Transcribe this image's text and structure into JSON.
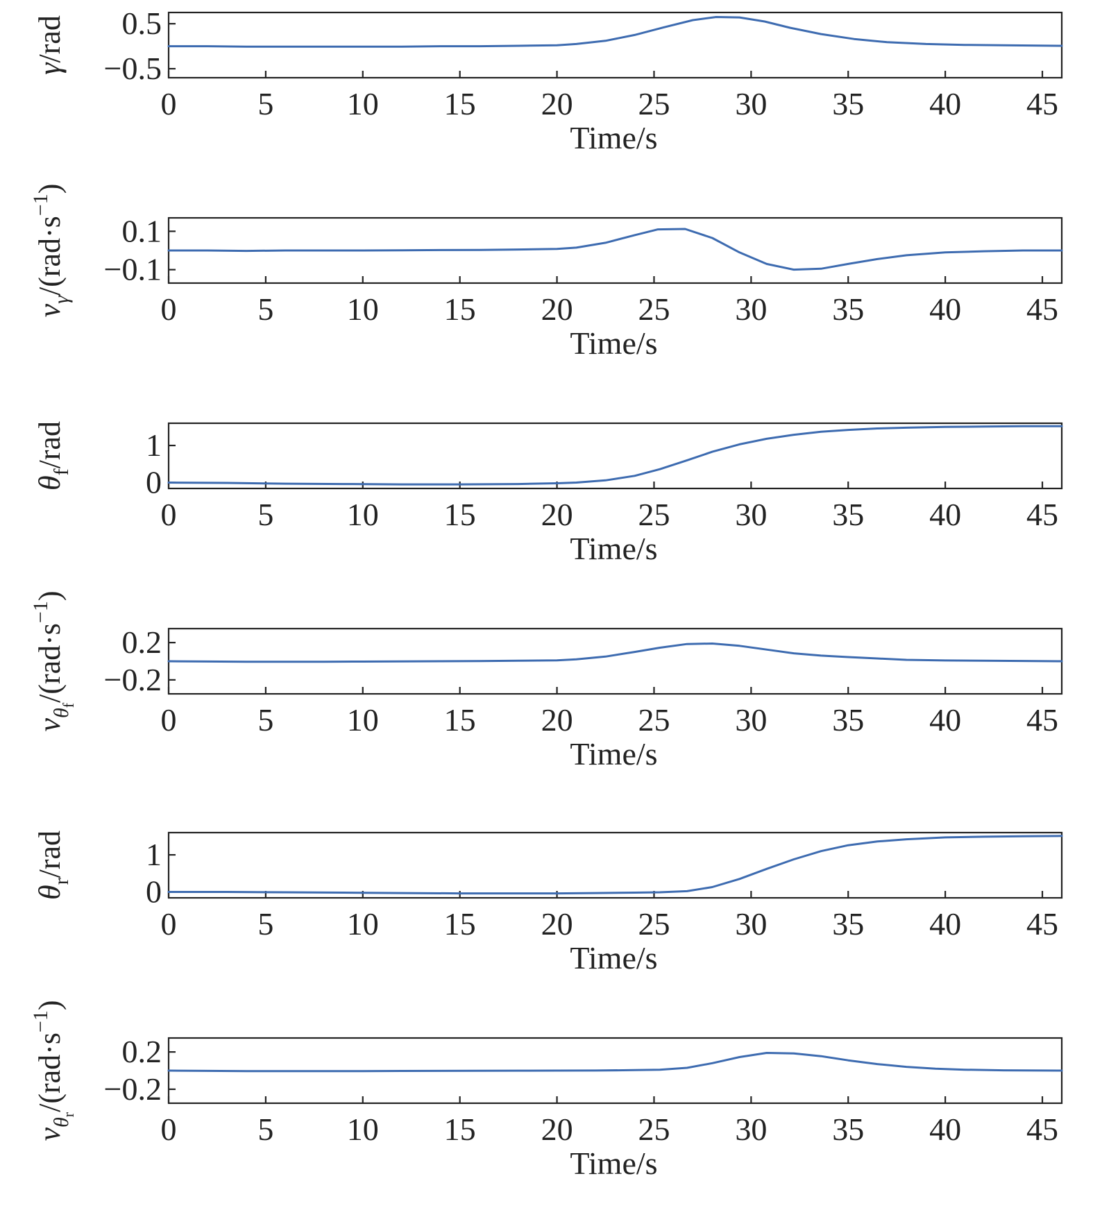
{
  "figure": {
    "line_color": "#3d6bb0"
  },
  "chart_data": [
    {
      "type": "line",
      "ylabel": "γ/rad",
      "xlabel": "Time/s",
      "xlim": [
        0,
        46
      ],
      "ylim": [
        -0.7,
        0.75
      ],
      "xticks": [
        0,
        5,
        10,
        15,
        20,
        25,
        30,
        35,
        40,
        45
      ],
      "yticks": [
        0.5,
        -0.5
      ],
      "ytick_labels": [
        "0.5",
        "−0.5"
      ],
      "series": [
        {
          "x": [
            0,
            2,
            4,
            6,
            8,
            10,
            12,
            14,
            16,
            18,
            20,
            21,
            22.5,
            24,
            25.5,
            27,
            28.2,
            29.4,
            30.7,
            32,
            33.6,
            35.3,
            37,
            39,
            41,
            43,
            46
          ],
          "y": [
            0.0,
            0.0,
            -0.01,
            -0.01,
            -0.01,
            -0.01,
            -0.01,
            0.0,
            0.0,
            0.01,
            0.02,
            0.05,
            0.12,
            0.25,
            0.42,
            0.58,
            0.65,
            0.64,
            0.55,
            0.41,
            0.27,
            0.16,
            0.09,
            0.05,
            0.03,
            0.02,
            0.01
          ]
        }
      ]
    },
    {
      "type": "line",
      "ylabel": "vγ/(rad·s−1)",
      "xlabel": "Time/s",
      "xlim": [
        0,
        46
      ],
      "ylim": [
        -0.17,
        0.17
      ],
      "xticks": [
        0,
        5,
        10,
        15,
        20,
        25,
        30,
        35,
        40,
        45
      ],
      "yticks": [
        0.1,
        -0.1
      ],
      "ytick_labels": [
        "0.1",
        "−0.1"
      ],
      "series": [
        {
          "x": [
            0,
            2,
            4,
            6,
            8,
            10,
            12,
            14,
            16,
            18,
            20,
            21,
            22.5,
            24,
            25.2,
            26.6,
            28,
            29.4,
            30.8,
            32.2,
            33.6,
            35,
            36.5,
            38,
            40,
            42,
            44,
            46
          ],
          "y": [
            0.0,
            0.0,
            -0.002,
            0.0,
            0.0,
            0.0,
            0.001,
            0.002,
            0.003,
            0.005,
            0.008,
            0.015,
            0.04,
            0.08,
            0.11,
            0.112,
            0.065,
            -0.01,
            -0.07,
            -0.1,
            -0.095,
            -0.07,
            -0.045,
            -0.025,
            -0.01,
            -0.004,
            0.0,
            0.0
          ]
        }
      ]
    },
    {
      "type": "line",
      "ylabel": "θf/rad",
      "xlabel": "Time/s",
      "xlim": [
        0,
        46
      ],
      "ylim": [
        -0.16,
        1.6
      ],
      "xticks": [
        0,
        5,
        10,
        15,
        20,
        25,
        30,
        35,
        40,
        45
      ],
      "yticks": [
        1,
        0
      ],
      "ytick_labels": [
        "1",
        "0"
      ],
      "series": [
        {
          "x": [
            0,
            3,
            6,
            9,
            12,
            15,
            18,
            20,
            21,
            22.5,
            24,
            25.3,
            26.7,
            28,
            29.4,
            30.8,
            32.2,
            33.6,
            35,
            36.5,
            38,
            40,
            42,
            44,
            46
          ],
          "y": [
            0.0,
            -0.01,
            -0.03,
            -0.04,
            -0.05,
            -0.05,
            -0.04,
            -0.02,
            0.0,
            0.06,
            0.18,
            0.36,
            0.6,
            0.83,
            1.03,
            1.18,
            1.29,
            1.37,
            1.42,
            1.46,
            1.48,
            1.5,
            1.51,
            1.52,
            1.52
          ]
        }
      ]
    },
    {
      "type": "line",
      "ylabel": "vθf/(rad·s−1)",
      "xlabel": "Time/s",
      "xlim": [
        0,
        46
      ],
      "ylim": [
        -0.35,
        0.35
      ],
      "xticks": [
        0,
        5,
        10,
        15,
        20,
        25,
        30,
        35,
        40,
        45
      ],
      "yticks": [
        0.2,
        -0.2
      ],
      "ytick_labels": [
        "0.2",
        "−0.2"
      ],
      "series": [
        {
          "x": [
            0,
            2,
            4,
            6,
            8,
            10,
            12,
            14,
            16,
            18,
            20,
            21,
            22.5,
            24,
            25.3,
            26.7,
            28,
            29.4,
            30.8,
            32.2,
            33.6,
            35,
            36.5,
            38,
            40,
            42,
            44,
            46
          ],
          "y": [
            0.0,
            -0.003,
            -0.005,
            -0.005,
            -0.005,
            -0.004,
            -0.002,
            0.0,
            0.002,
            0.005,
            0.01,
            0.02,
            0.05,
            0.1,
            0.145,
            0.185,
            0.19,
            0.165,
            0.125,
            0.085,
            0.06,
            0.045,
            0.03,
            0.015,
            0.008,
            0.005,
            0.003,
            0.0
          ]
        }
      ]
    },
    {
      "type": "line",
      "ylabel": "θr/rad",
      "xlabel": "Time/s",
      "xlim": [
        0,
        46
      ],
      "ylim": [
        -0.16,
        1.6
      ],
      "xticks": [
        0,
        5,
        10,
        15,
        20,
        25,
        30,
        35,
        40,
        45
      ],
      "yticks": [
        1,
        0
      ],
      "ytick_labels": [
        "1",
        "0"
      ],
      "series": [
        {
          "x": [
            0,
            3,
            6,
            9,
            12,
            15,
            18,
            20,
            22,
            24,
            25.3,
            26.7,
            28,
            29.4,
            30.8,
            32.2,
            33.6,
            35,
            36.5,
            38,
            40,
            42,
            44,
            46
          ],
          "y": [
            0.0,
            0.0,
            -0.01,
            -0.02,
            -0.03,
            -0.04,
            -0.04,
            -0.04,
            -0.03,
            -0.02,
            -0.01,
            0.02,
            0.13,
            0.35,
            0.62,
            0.88,
            1.1,
            1.26,
            1.36,
            1.42,
            1.47,
            1.49,
            1.5,
            1.51
          ]
        }
      ]
    },
    {
      "type": "line",
      "ylabel": "vθr/(rad·s−1)",
      "xlabel": "Time/s",
      "xlim": [
        0,
        46
      ],
      "ylim": [
        -0.35,
        0.35
      ],
      "xticks": [
        0,
        5,
        10,
        15,
        20,
        25,
        30,
        35,
        40,
        45
      ],
      "yticks": [
        0.2,
        -0.2
      ],
      "ytick_labels": [
        "0.2",
        "−0.2"
      ],
      "series": [
        {
          "x": [
            0,
            2,
            4,
            6,
            8,
            10,
            12,
            14,
            16,
            18,
            20,
            22,
            24,
            25.3,
            26.7,
            28,
            29.4,
            30.8,
            32.2,
            33.6,
            35,
            36.5,
            38,
            39.5,
            41,
            43,
            46
          ],
          "y": [
            0.0,
            -0.003,
            -0.005,
            -0.005,
            -0.005,
            -0.005,
            -0.004,
            -0.003,
            -0.002,
            -0.001,
            0.0,
            0.001,
            0.005,
            0.01,
            0.03,
            0.08,
            0.145,
            0.19,
            0.185,
            0.155,
            0.11,
            0.07,
            0.04,
            0.02,
            0.01,
            0.003,
            0.0
          ]
        }
      ]
    }
  ]
}
